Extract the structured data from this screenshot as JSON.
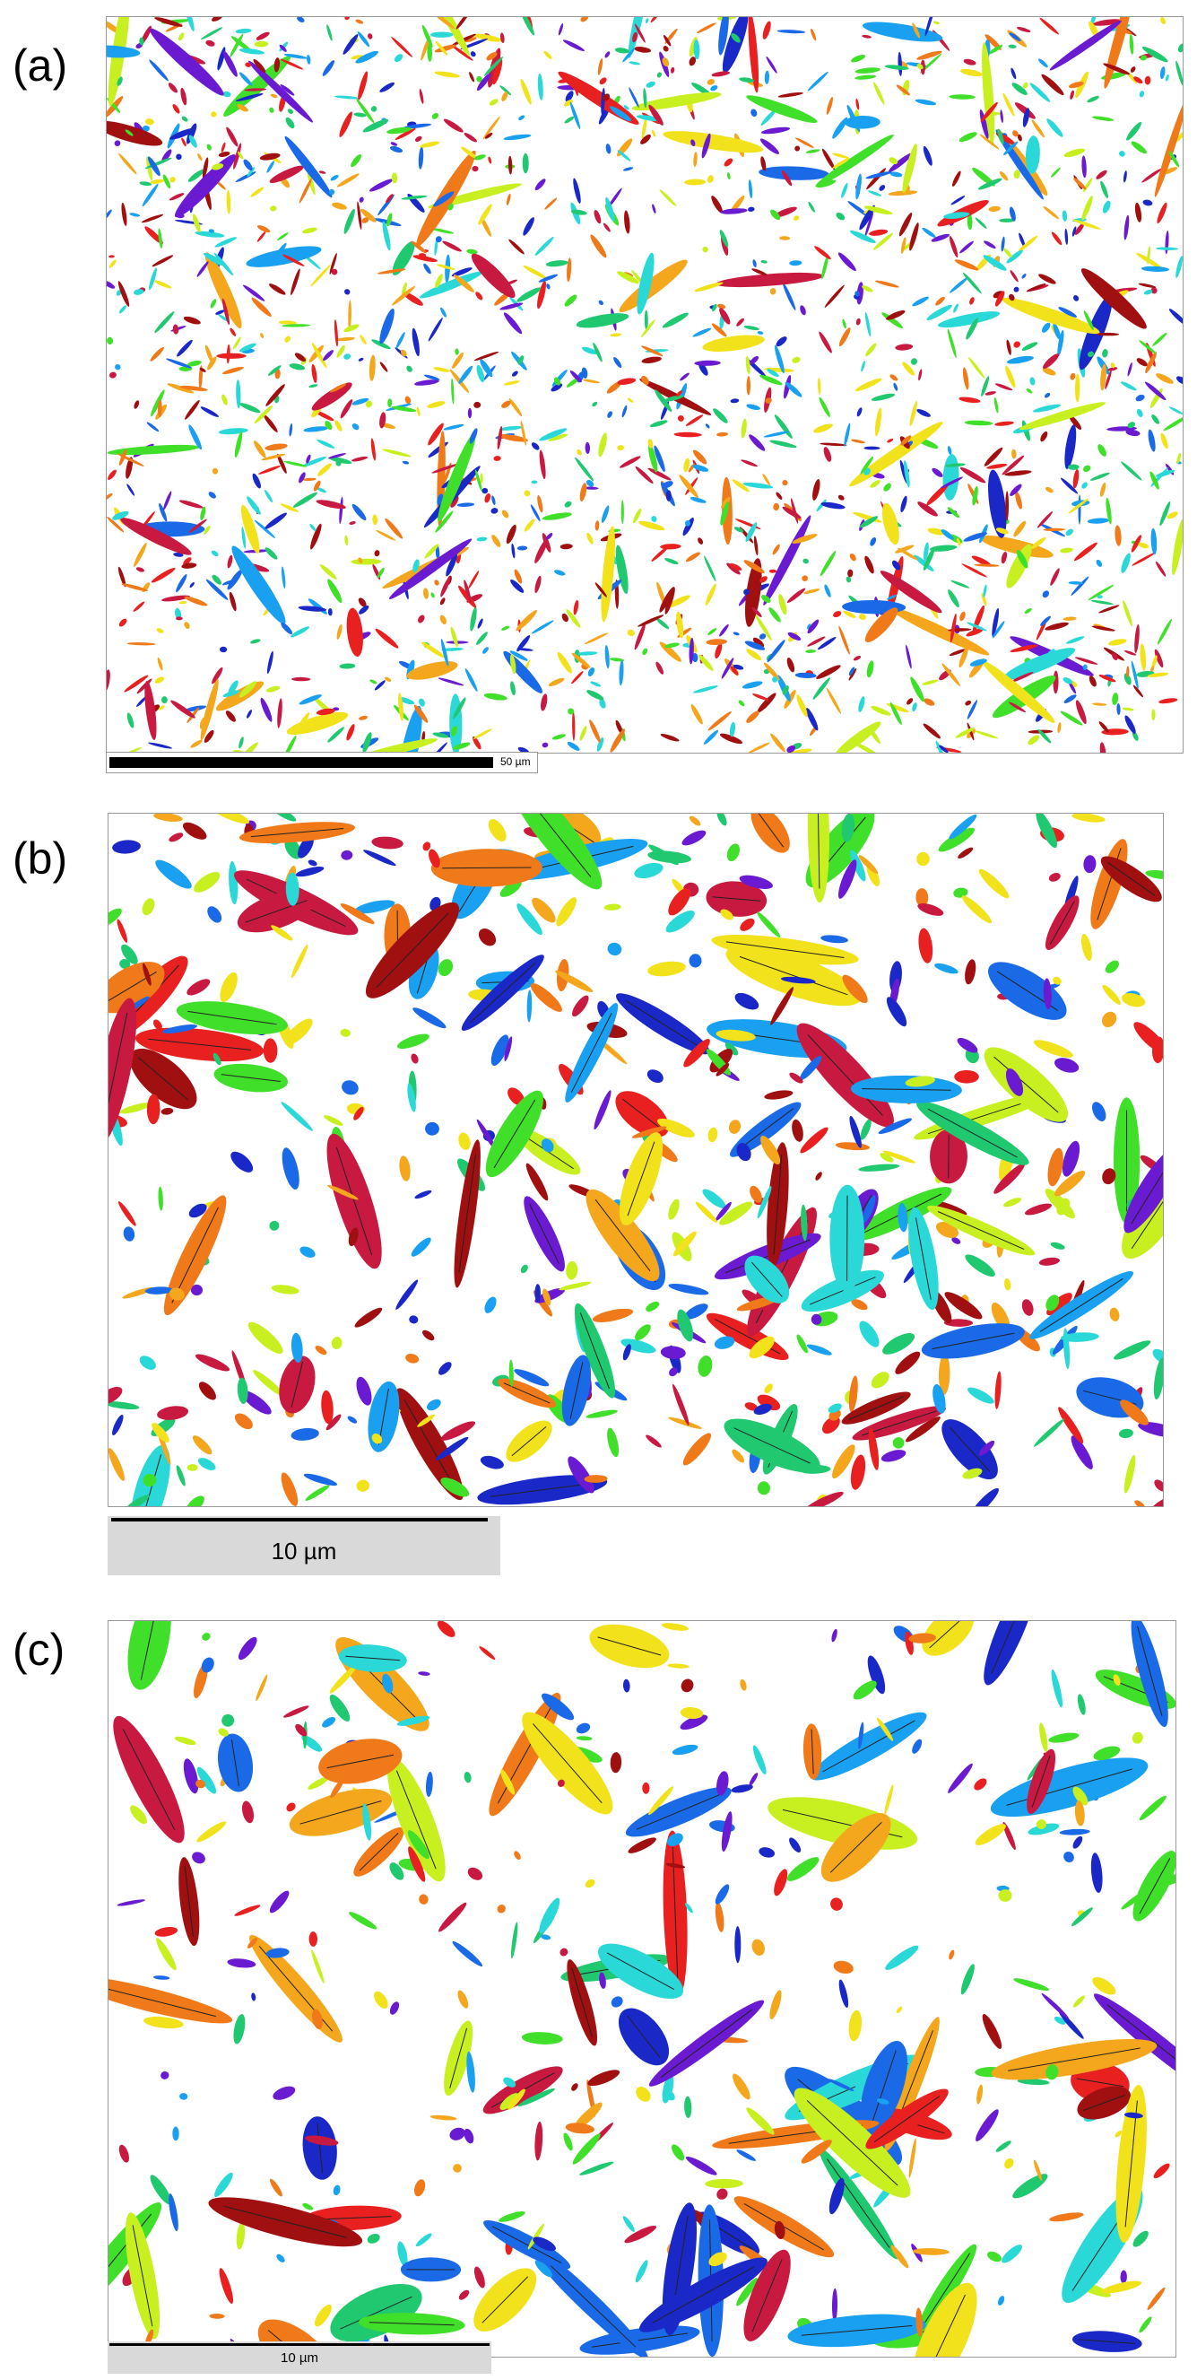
{
  "panels": [
    {
      "label": "(a)",
      "scale_label": "50 µm"
    },
    {
      "label": "(b)",
      "scale_label": "10 µm"
    },
    {
      "label": "(c)",
      "scale_label": "10 µm"
    }
  ],
  "colors": {
    "grain_palette": [
      "#e82020",
      "#f07a1a",
      "#f4a61c",
      "#f2e21c",
      "#c8f020",
      "#40e02a",
      "#20c870",
      "#2ad8d8",
      "#1aa0f0",
      "#1a6ae8",
      "#1a28c8",
      "#6a1ad0",
      "#c81a40",
      "#a01010"
    ]
  }
}
